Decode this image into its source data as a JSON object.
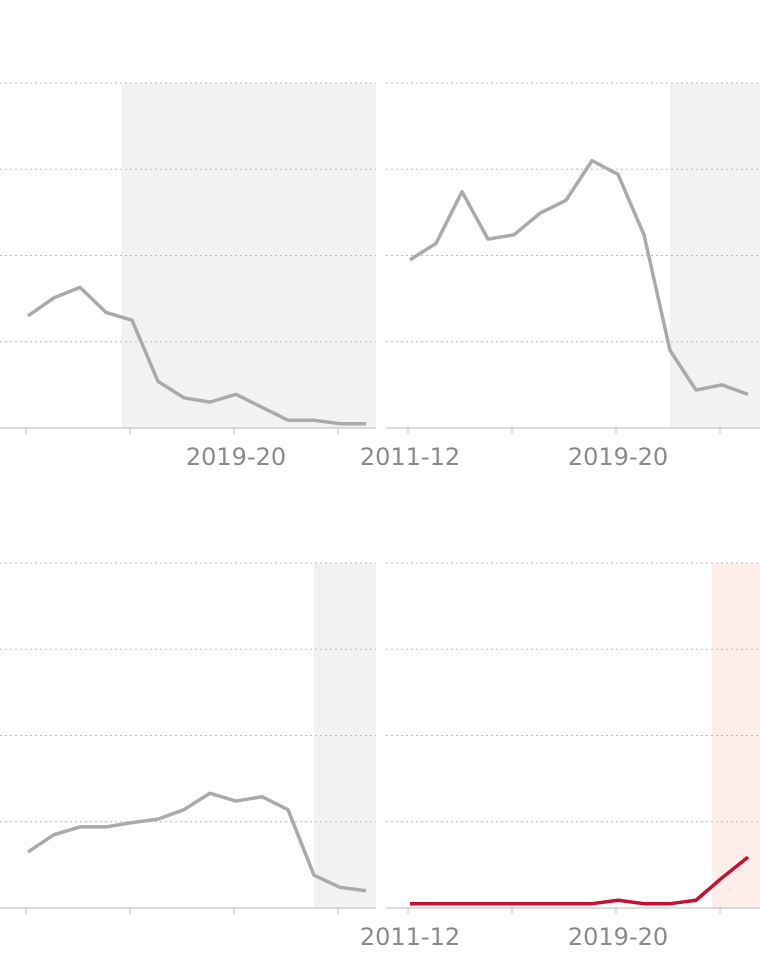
{
  "chart_data": [
    {
      "type": "line",
      "categories": [
        null,
        null,
        null,
        null,
        null,
        null,
        null,
        null,
        "2019-20",
        null,
        null,
        null,
        null,
        null
      ],
      "values": [
        1.3,
        1.51,
        1.63,
        1.34,
        1.25,
        0.54,
        0.35,
        0.3,
        0.39,
        0.24,
        0.09,
        0.09,
        0.05,
        0.05
      ],
      "color": "#aaaaaa",
      "shade_color": "#f2f2f2",
      "shade_start": 3.6,
      "ylim": [
        0,
        4
      ],
      "y_grid": [
        1,
        2,
        3,
        4
      ]
    },
    {
      "type": "line",
      "categories": [
        "2011-12",
        null,
        null,
        null,
        null,
        null,
        null,
        null,
        "2019-20",
        null,
        null,
        null,
        null,
        null
      ],
      "values": [
        1.95,
        2.14,
        2.74,
        2.19,
        2.24,
        2.49,
        2.64,
        3.1,
        2.94,
        2.24,
        0.9,
        0.44,
        0.5,
        0.39
      ],
      "color": "#aaaaaa",
      "shade_color": "#f2f2f2",
      "shade_start": 10.0,
      "ylim": [
        0,
        4
      ],
      "y_grid": [
        1,
        2,
        3,
        4
      ]
    },
    {
      "type": "line",
      "categories": [
        null,
        null,
        null,
        null,
        null,
        null,
        null,
        null,
        null,
        null,
        null,
        null,
        null,
        null
      ],
      "values": [
        0.65,
        0.85,
        0.94,
        0.94,
        0.99,
        1.03,
        1.14,
        1.33,
        1.24,
        1.29,
        1.14,
        0.38,
        0.24,
        0.2
      ],
      "color": "#aaaaaa",
      "shade_color": "#f2f2f2",
      "shade_start": 11.0,
      "ylim": [
        0,
        4
      ],
      "y_grid": [
        1,
        2,
        3,
        4
      ]
    },
    {
      "type": "line",
      "categories": [
        "2011-12",
        null,
        null,
        null,
        null,
        null,
        null,
        null,
        "2019-20",
        null,
        null,
        null,
        null,
        null
      ],
      "values": [
        0.05,
        0.05,
        0.05,
        0.05,
        0.05,
        0.05,
        0.05,
        0.05,
        0.09,
        0.05,
        0.05,
        0.09,
        0.35,
        0.59
      ],
      "color": "#c8102e",
      "shade_color": "#fdeeea",
      "shade_start": 11.6,
      "ylim": [
        0,
        4
      ],
      "y_grid": [
        1,
        2,
        3,
        4
      ]
    }
  ]
}
